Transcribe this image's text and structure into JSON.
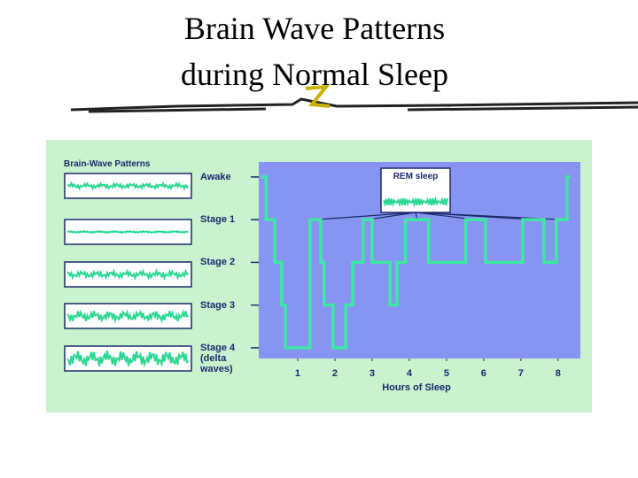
{
  "chart_data": {
    "type": "step",
    "title": "Brain Wave Patterns during Normal Sleep",
    "inset_title": "Brain-Wave Patterns",
    "annotation": "REM sleep",
    "xlabel": "Hours of Sleep",
    "x": [
      0,
      0.15,
      0.38,
      0.57,
      0.67,
      1.33,
      1.62,
      1.71,
      1.95,
      2.29,
      2.48,
      2.76,
      3.0,
      3.48,
      3.67,
      3.9,
      4.52,
      5.52,
      6.05,
      7.05,
      7.62,
      7.95,
      8.24,
      8.33
    ],
    "values": [
      0,
      1,
      2,
      3,
      4,
      1,
      2,
      3,
      4,
      3,
      2,
      1,
      2,
      3,
      2,
      1,
      2,
      1,
      2,
      1,
      2,
      1,
      0,
      0
    ],
    "color": "#3ee8a4",
    "xlim": [
      0,
      8.6
    ],
    "xticks": [
      1,
      2,
      3,
      4,
      5,
      6,
      7,
      8
    ],
    "ylim": [
      4.25,
      -0.35
    ],
    "yticks": [
      {
        "value": 0,
        "label": "Awake"
      },
      {
        "value": 1,
        "label": "Stage 1"
      },
      {
        "value": 2,
        "label": "Stage 2"
      },
      {
        "value": 3,
        "label": "Stage 3"
      },
      {
        "value": 4,
        "label": "Stage 4 (delta waves)"
      }
    ]
  }
}
